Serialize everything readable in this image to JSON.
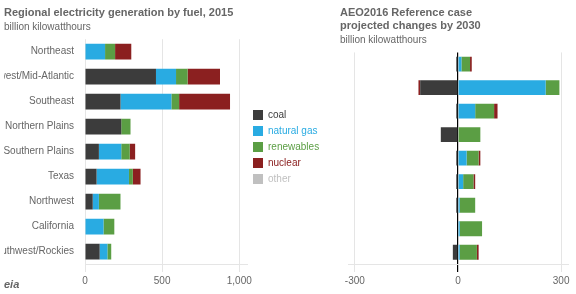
{
  "chart_data": [
    {
      "type": "bar",
      "orientation": "horizontal",
      "stacked": true,
      "title": "Regional electricity generation by fuel, 2015",
      "subtitle": "billion kilowatthours",
      "categories": [
        "Northeast",
        "Midwest/Mid-Atlantic",
        "Southeast",
        "Northern Plains",
        "Southern Plains",
        "Texas",
        "Northwest",
        "California",
        "Southwest/Rockies"
      ],
      "series": [
        {
          "name": "coal",
          "color": "#3c3c3c",
          "values": [
            0,
            460,
            230,
            235,
            90,
            75,
            50,
            0,
            95
          ]
        },
        {
          "name": "natural gas",
          "color": "#29abe2",
          "values": [
            130,
            130,
            330,
            0,
            145,
            210,
            40,
            120,
            50
          ]
        },
        {
          "name": "renewables",
          "color": "#5b9e44",
          "values": [
            65,
            75,
            50,
            60,
            55,
            25,
            140,
            70,
            25
          ]
        },
        {
          "name": "nuclear",
          "color": "#8b2020",
          "values": [
            105,
            210,
            330,
            0,
            35,
            50,
            0,
            0,
            0
          ]
        },
        {
          "name": "other",
          "color": "#c0c0c0",
          "values": [
            0,
            0,
            0,
            0,
            0,
            0,
            0,
            0,
            0
          ]
        }
      ],
      "xlim": [
        0,
        1050
      ],
      "xticks": [
        0,
        500,
        {
          "value": 1000,
          "label": "1,000"
        }
      ],
      "grid": true,
      "legend": "right",
      "annotations": [
        "eia"
      ]
    },
    {
      "type": "bar",
      "orientation": "horizontal",
      "stacked": true,
      "title": [
        "AEO2016 Reference case",
        "projected changes by 2030"
      ],
      "subtitle": "billion kilowatthours",
      "categories": [
        null,
        null,
        null,
        null,
        null,
        null,
        null,
        null,
        null
      ],
      "series": [
        {
          "name": "coal",
          "color": "#3c3c3c",
          "values": [
            -5,
            -110,
            -5,
            -50,
            -5,
            -5,
            -5,
            0,
            -15
          ]
        },
        {
          "name": "natural gas",
          "color": "#29abe2",
          "values": [
            10,
            255,
            50,
            0,
            25,
            15,
            5,
            5,
            5
          ]
        },
        {
          "name": "renewables",
          "color": "#5b9e44",
          "values": [
            25,
            40,
            55,
            65,
            35,
            30,
            45,
            65,
            50
          ]
        },
        {
          "name": "nuclear",
          "color": "#8b2020",
          "values": [
            5,
            -5,
            10,
            0,
            5,
            5,
            0,
            0,
            5
          ]
        },
        {
          "name": "other",
          "color": "#c0c0c0",
          "values": [
            0,
            0,
            0,
            0,
            0,
            0,
            0,
            0,
            0
          ]
        }
      ],
      "xlim": [
        -320,
        320
      ],
      "xticks": [
        -300,
        0,
        300
      ],
      "grid": true,
      "tick_labels": "x"
    }
  ]
}
